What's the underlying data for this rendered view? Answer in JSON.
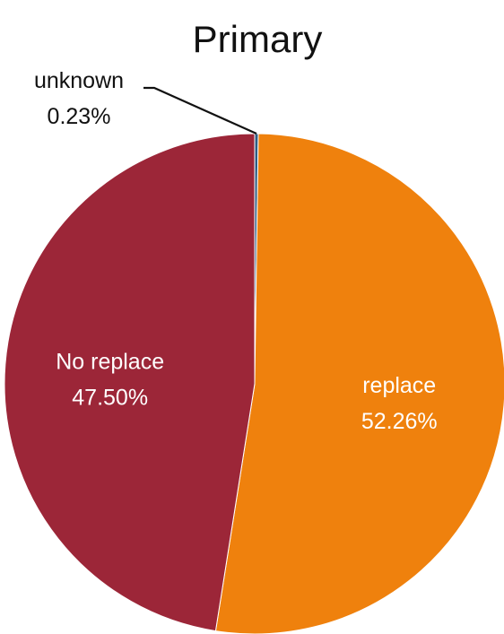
{
  "chart_data": {
    "type": "pie",
    "title": "Primary",
    "slices": [
      {
        "label": "unknown",
        "percent_label": "0.23%",
        "value": 0.23,
        "color": "#2e5e84"
      },
      {
        "label": "replace",
        "percent_label": "52.26%",
        "value": 52.26,
        "color": "#ef810d"
      },
      {
        "label": "No replace",
        "percent_label": "47.50%",
        "value": 47.5,
        "color": "#9c2638"
      }
    ],
    "label_colors": {
      "inside": "#ffffff",
      "outside": "#111111",
      "leader_line": "#111111",
      "slice_border": "#ffffff"
    },
    "legend": "none"
  }
}
